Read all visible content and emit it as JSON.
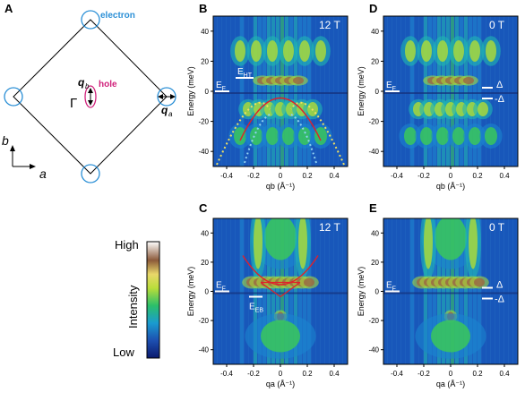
{
  "panel_letters": {
    "a": "A",
    "b": "B",
    "c": "C",
    "d": "D",
    "e": "E"
  },
  "schematic": {
    "electron_label": "electron",
    "hole_label": "hole",
    "gamma": "Γ",
    "qb": "q",
    "qb_sub": "b",
    "qa": "q",
    "qa_sub": "a",
    "axis_b": "b",
    "axis_a": "a",
    "colors": {
      "electron": "#2a8fd6",
      "hole": "#d0207a",
      "lines": "#000000"
    }
  },
  "colorbar": {
    "high": "High",
    "low": "Low",
    "label": "Intensity"
  },
  "panels": {
    "B": {
      "field": "12 T",
      "xlabel": "q_b (Å⁻¹)",
      "ylabel": "Energy (meV)",
      "ann_EHT": "E_HT",
      "ann_EF": "E_F"
    },
    "D": {
      "field": "0 T",
      "xlabel": "q_b (Å⁻¹)",
      "ylabel": "Energy (meV)",
      "ann_EF": "E_F",
      "delta_pos": "Δ",
      "delta_neg": "-Δ"
    },
    "C": {
      "field": "12 T",
      "xlabel": "q_a (Å⁻¹)",
      "ylabel": "Energy (meV)",
      "ann_EF": "E_F",
      "ann_EEB": "E_EB"
    },
    "E": {
      "field": "0 T",
      "xlabel": "q_a (Å⁻¹)",
      "ylabel": "Energy (meV)",
      "ann_EF": "E_F",
      "delta_pos": "Δ",
      "delta_neg": "-Δ"
    }
  },
  "axes": {
    "x_ticks": [
      "-0.4",
      "-0.2",
      "0",
      "0.2",
      "0.4"
    ],
    "y_ticks": [
      "40",
      "20",
      "0",
      "-20",
      "-40"
    ]
  }
}
